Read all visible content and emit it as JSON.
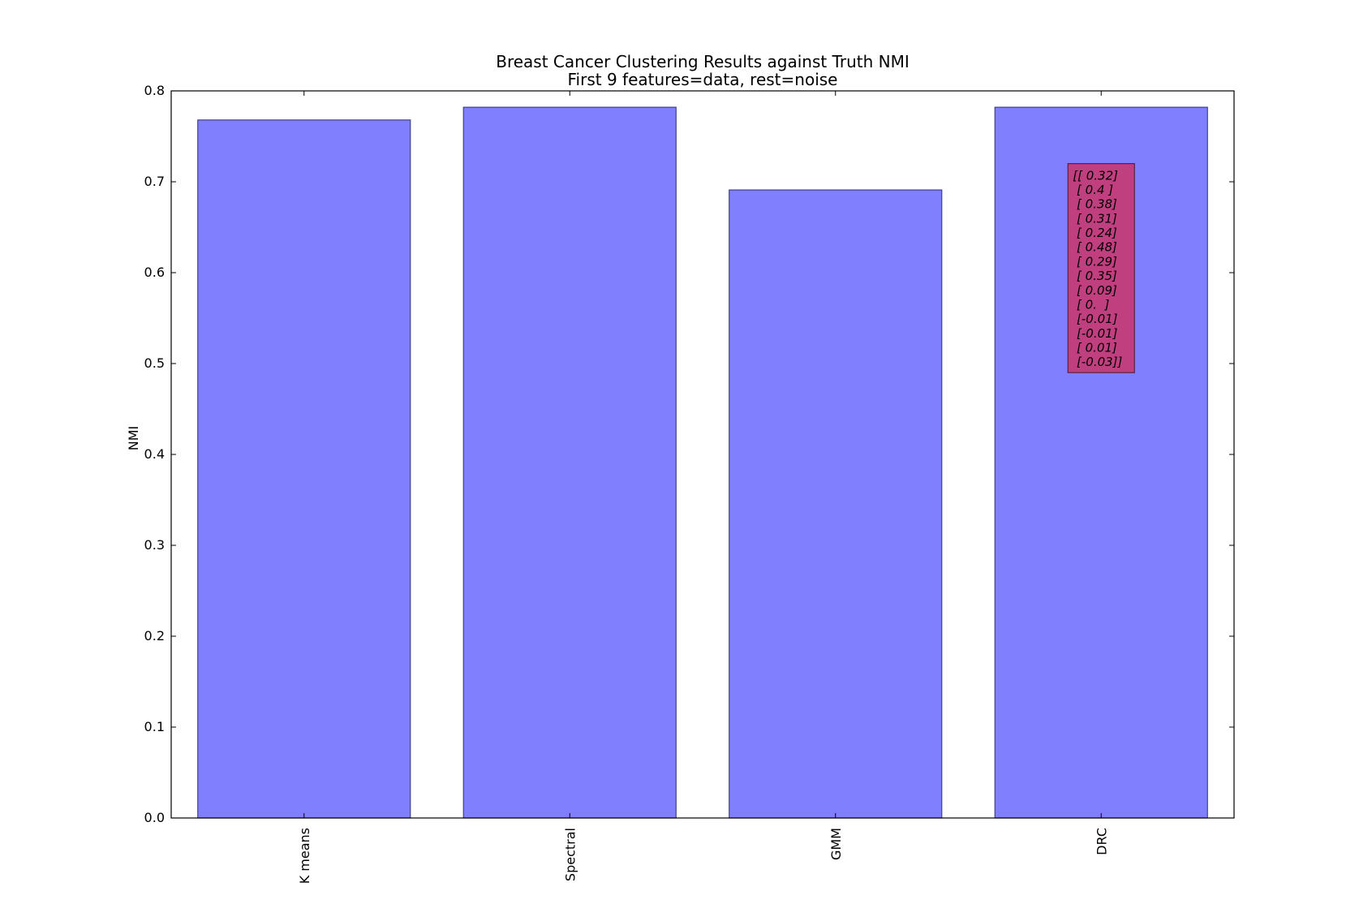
{
  "chart_data": {
    "type": "bar",
    "title": "Breast Cancer Clustering Results against Truth NMI",
    "subtitle": "First 9 features=data, rest=noise",
    "xlabel": "",
    "ylabel": "NMI",
    "categories": [
      "K means",
      "Spectral",
      "GMM",
      "DRC"
    ],
    "values": [
      0.768,
      0.782,
      0.691,
      0.782
    ],
    "ylim": [
      0,
      0.8
    ],
    "yticks": [
      0.0,
      0.1,
      0.2,
      0.3,
      0.4,
      0.5,
      0.6,
      0.7,
      0.8
    ],
    "ytick_labels": [
      "0.0",
      "0.1",
      "0.2",
      "0.3",
      "0.4",
      "0.5",
      "0.6",
      "0.7",
      "0.8"
    ],
    "grid": false,
    "bar_color": "#8080ff",
    "annotation": {
      "category": "DRC",
      "y_top": 0.72,
      "y_bottom": 0.49,
      "box_color": "#c0407f",
      "lines": [
        "[[ 0.32]",
        " [ 0.4 ]",
        " [ 0.38]",
        " [ 0.31]",
        " [ 0.24]",
        " [ 0.48]",
        " [ 0.29]",
        " [ 0.35]",
        " [ 0.09]",
        " [ 0.  ]",
        " [-0.01]",
        " [-0.01]",
        " [ 0.01]",
        " [-0.03]]"
      ]
    }
  }
}
